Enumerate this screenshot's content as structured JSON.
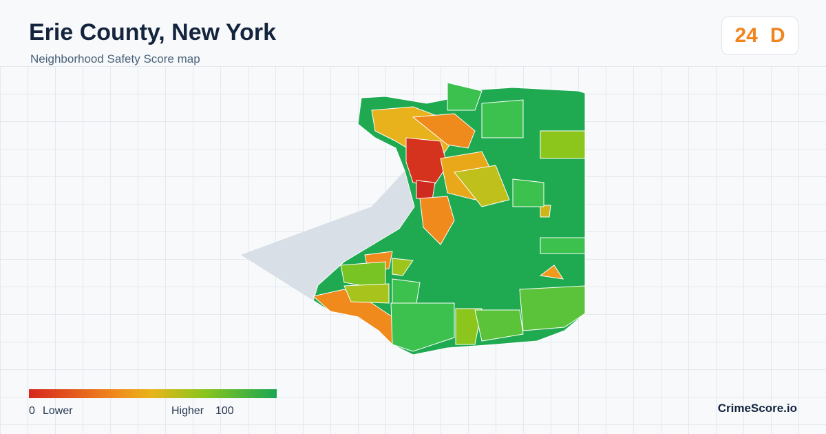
{
  "header": {
    "title": "Erie County, New York",
    "subtitle": "Neighborhood Safety Score map"
  },
  "score": {
    "value": "24",
    "grade": "D"
  },
  "legend": {
    "min": "0",
    "low_label": "Lower",
    "high_label": "Higher",
    "max": "100"
  },
  "footer": {
    "brand": "CrimeScore.io"
  }
}
